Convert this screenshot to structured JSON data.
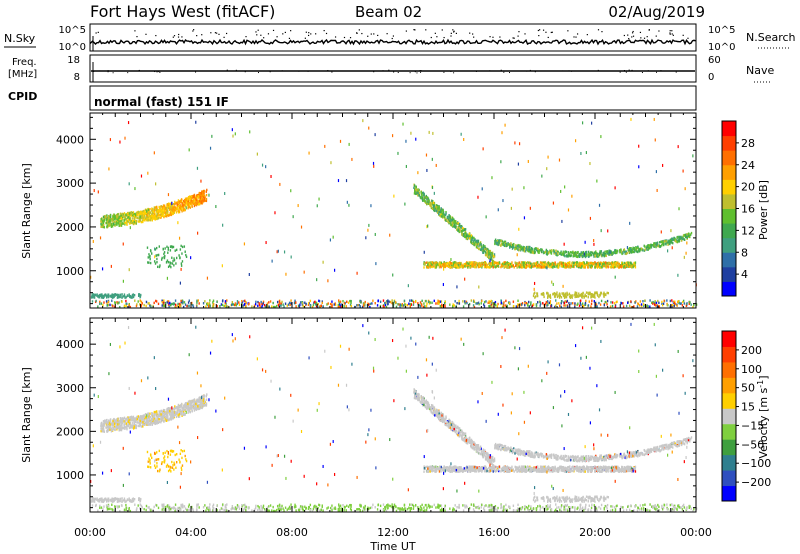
{
  "header": {
    "station": "Fort Hays West (fitACF)",
    "beam": "Beam 02",
    "date": "02/Aug/2019"
  },
  "strip_panels": {
    "nsky": {
      "left_label": "N.Sky",
      "right_label": "N.Search",
      "ticks_left": [
        "10^5",
        "10^0"
      ],
      "ticks_right": [
        "10^5",
        "10^0"
      ]
    },
    "freq": {
      "left_label_1": "Freq.",
      "left_label_2": "[MHz]",
      "ticks_left": [
        "18",
        "8"
      ],
      "right_label": "Nave",
      "ticks_right": [
        "60",
        "0"
      ]
    },
    "cpid": {
      "left_label": "CPID",
      "text": "normal (fast) 151 IF"
    }
  },
  "colors": {
    "power": [
      "#0000ff",
      "#1f3fa0",
      "#2e6fa8",
      "#3f9f7f",
      "#3fa84f",
      "#5fbf2f",
      "#bfbf2f",
      "#ffcf00",
      "#ff9f00",
      "#ff6f00",
      "#ff3f00",
      "#ff0000"
    ],
    "velocity": [
      "#0000ff",
      "#2f4fbf",
      "#2f7f8f",
      "#3f9f3f",
      "#7fcf3f",
      "#c8c8c8",
      "#ffcf00",
      "#ff9f00",
      "#ff6f00",
      "#ff3f00",
      "#ff0000"
    ]
  },
  "chart_data": [
    {
      "type": "heatmap",
      "name": "power",
      "xlabel": "",
      "ylabel": "Slant Range [km]",
      "x_ticks": [
        "00:00",
        "04:00",
        "08:00",
        "12:00",
        "16:00",
        "20:00",
        "00:00"
      ],
      "y_ticks": [
        1000,
        2000,
        3000,
        4000
      ],
      "ylim": [
        150,
        4600
      ],
      "xlim_hours": [
        0,
        24
      ],
      "colorbar_label": "Power [dB]",
      "colorbar_ticks": [
        "28",
        "24",
        "20",
        "16",
        "12",
        "8",
        "4"
      ],
      "colorbar_range": [
        0,
        30
      ],
      "echo_regions": [
        {
          "t0": 0.3,
          "t1": 4.6,
          "r0": 2250,
          "r1": 2800,
          "center_power": 18
        },
        {
          "t0": 12.7,
          "t1": 23.8,
          "r0": 1000,
          "r1": 3000,
          "center_power": 12
        },
        {
          "t0": 13.2,
          "t1": 21.5,
          "r0": 1100,
          "r1": 1250,
          "center_power": 20
        },
        {
          "t0": 0,
          "t1": 24,
          "r0": 180,
          "r1": 450,
          "center_power": 14
        }
      ]
    },
    {
      "type": "heatmap",
      "name": "velocity",
      "xlabel": "Time UT",
      "ylabel": "Slant Range [km]",
      "x_ticks": [
        "00:00",
        "04:00",
        "08:00",
        "12:00",
        "16:00",
        "20:00",
        "00:00"
      ],
      "y_ticks": [
        1000,
        2000,
        3000,
        4000
      ],
      "ylim": [
        150,
        4600
      ],
      "xlim_hours": [
        0,
        24
      ],
      "colorbar_label": "Velocity [m s",
      "colorbar_label_sup": "-1",
      "colorbar_label_end": "]",
      "colorbar_ticks": [
        "200",
        "100",
        "50",
        "15",
        "−15",
        "−50",
        "−100",
        "−200"
      ],
      "colorbar_range": [
        -250,
        250
      ]
    }
  ]
}
